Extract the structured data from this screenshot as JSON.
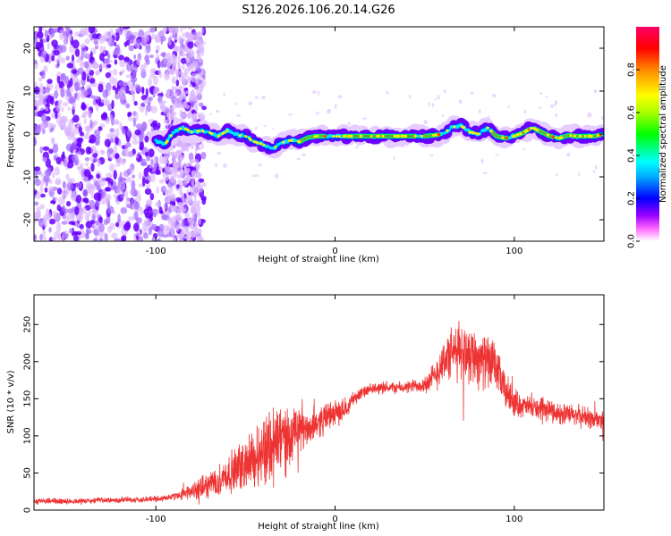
{
  "title": "S126.2026.106.20.14.G26",
  "chart_data": [
    {
      "type": "heatmap",
      "title": "S126.2026.106.20.14.G26",
      "xlabel": "Height of straight line (km)",
      "ylabel": "Frequency (Hz)",
      "xlim": [
        -168,
        150
      ],
      "ylim": [
        -25,
        25
      ],
      "xticks": [
        -100,
        0,
        100
      ],
      "yticks": [
        -20,
        -10,
        0,
        10,
        20
      ],
      "colorbar": {
        "label": "Normalized spectral amplitude",
        "range": [
          0,
          1
        ],
        "ticks": [
          0.0,
          0.2,
          0.4,
          0.6,
          0.8
        ],
        "colors": [
          "#ffffff",
          "#ff44ff",
          "#8800ff",
          "#0000ff",
          "#00aaff",
          "#00ffff",
          "#00ff00",
          "#ccff00",
          "#ffff00",
          "#ff8800",
          "#ff0000",
          "#ff0066"
        ]
      },
      "ridge": {
        "x": [
          -100,
          -95,
          -90,
          -85,
          -80,
          -75,
          -70,
          -65,
          -60,
          -55,
          -50,
          -45,
          -40,
          -35,
          -30,
          -25,
          -20,
          -15,
          -10,
          -5,
          0,
          5,
          10,
          15,
          20,
          25,
          30,
          35,
          40,
          45,
          50,
          55,
          60,
          65,
          70,
          75,
          80,
          85,
          90,
          95,
          100,
          105,
          110,
          115,
          120,
          125,
          130,
          135,
          140,
          145,
          150
        ],
        "y": [
          -1.5,
          -2.5,
          0.5,
          1.5,
          0.5,
          0.8,
          0.3,
          -0.5,
          0.8,
          -0.2,
          -0.5,
          -1.8,
          -2.5,
          -3.5,
          -2.0,
          -1.5,
          -1.8,
          -0.8,
          -0.5,
          -0.5,
          -0.6,
          -0.5,
          -0.5,
          -0.5,
          -0.5,
          -0.5,
          -0.5,
          -0.5,
          -0.5,
          -0.5,
          -0.5,
          -0.3,
          0.0,
          1.5,
          2.0,
          0.5,
          0.0,
          1.5,
          -0.5,
          -1.0,
          -0.5,
          0.3,
          1.5,
          0.5,
          -0.5,
          -1.0,
          -0.3,
          -0.5,
          -0.5,
          -0.5,
          0.0
        ]
      }
    },
    {
      "type": "line",
      "xlabel": "Height of straight line (km)",
      "ylabel": "SNR (10 * v/v)",
      "xlim": [
        -168,
        150
      ],
      "ylim": [
        0,
        290
      ],
      "xticks": [
        -100,
        0,
        100
      ],
      "yticks": [
        0,
        50,
        100,
        150,
        200,
        250
      ],
      "color": "#ee3333",
      "series": [
        {
          "name": "SNR",
          "x": [
            -168,
            -150,
            -130,
            -110,
            -100,
            -90,
            -85,
            -80,
            -75,
            -70,
            -65,
            -60,
            -55,
            -50,
            -45,
            -40,
            -35,
            -30,
            -25,
            -20,
            -15,
            -10,
            -5,
            0,
            5,
            10,
            15,
            20,
            25,
            30,
            35,
            40,
            45,
            50,
            55,
            60,
            65,
            70,
            75,
            80,
            85,
            90,
            95,
            100,
            105,
            110,
            115,
            120,
            125,
            130,
            135,
            140,
            145,
            150
          ],
          "y": [
            12,
            12,
            13,
            14,
            15,
            18,
            22,
            25,
            28,
            35,
            40,
            48,
            55,
            62,
            70,
            80,
            90,
            95,
            100,
            105,
            110,
            118,
            125,
            130,
            135,
            150,
            158,
            162,
            165,
            165,
            165,
            165,
            168,
            170,
            178,
            200,
            210,
            215,
            212,
            205,
            200,
            190,
            160,
            145,
            140,
            138,
            135,
            135,
            130,
            128,
            128,
            125,
            122,
            120
          ],
          "noise": [
            4,
            4,
            4,
            4,
            4,
            5,
            8,
            10,
            15,
            18,
            20,
            25,
            30,
            35,
            40,
            50,
            60,
            55,
            40,
            30,
            25,
            22,
            20,
            18,
            15,
            10,
            8,
            8,
            8,
            8,
            8,
            8,
            10,
            12,
            20,
            30,
            35,
            40,
            40,
            40,
            35,
            30,
            25,
            20,
            15,
            15,
            15,
            15,
            15,
            15,
            15,
            15,
            15,
            15
          ]
        }
      ]
    }
  ]
}
